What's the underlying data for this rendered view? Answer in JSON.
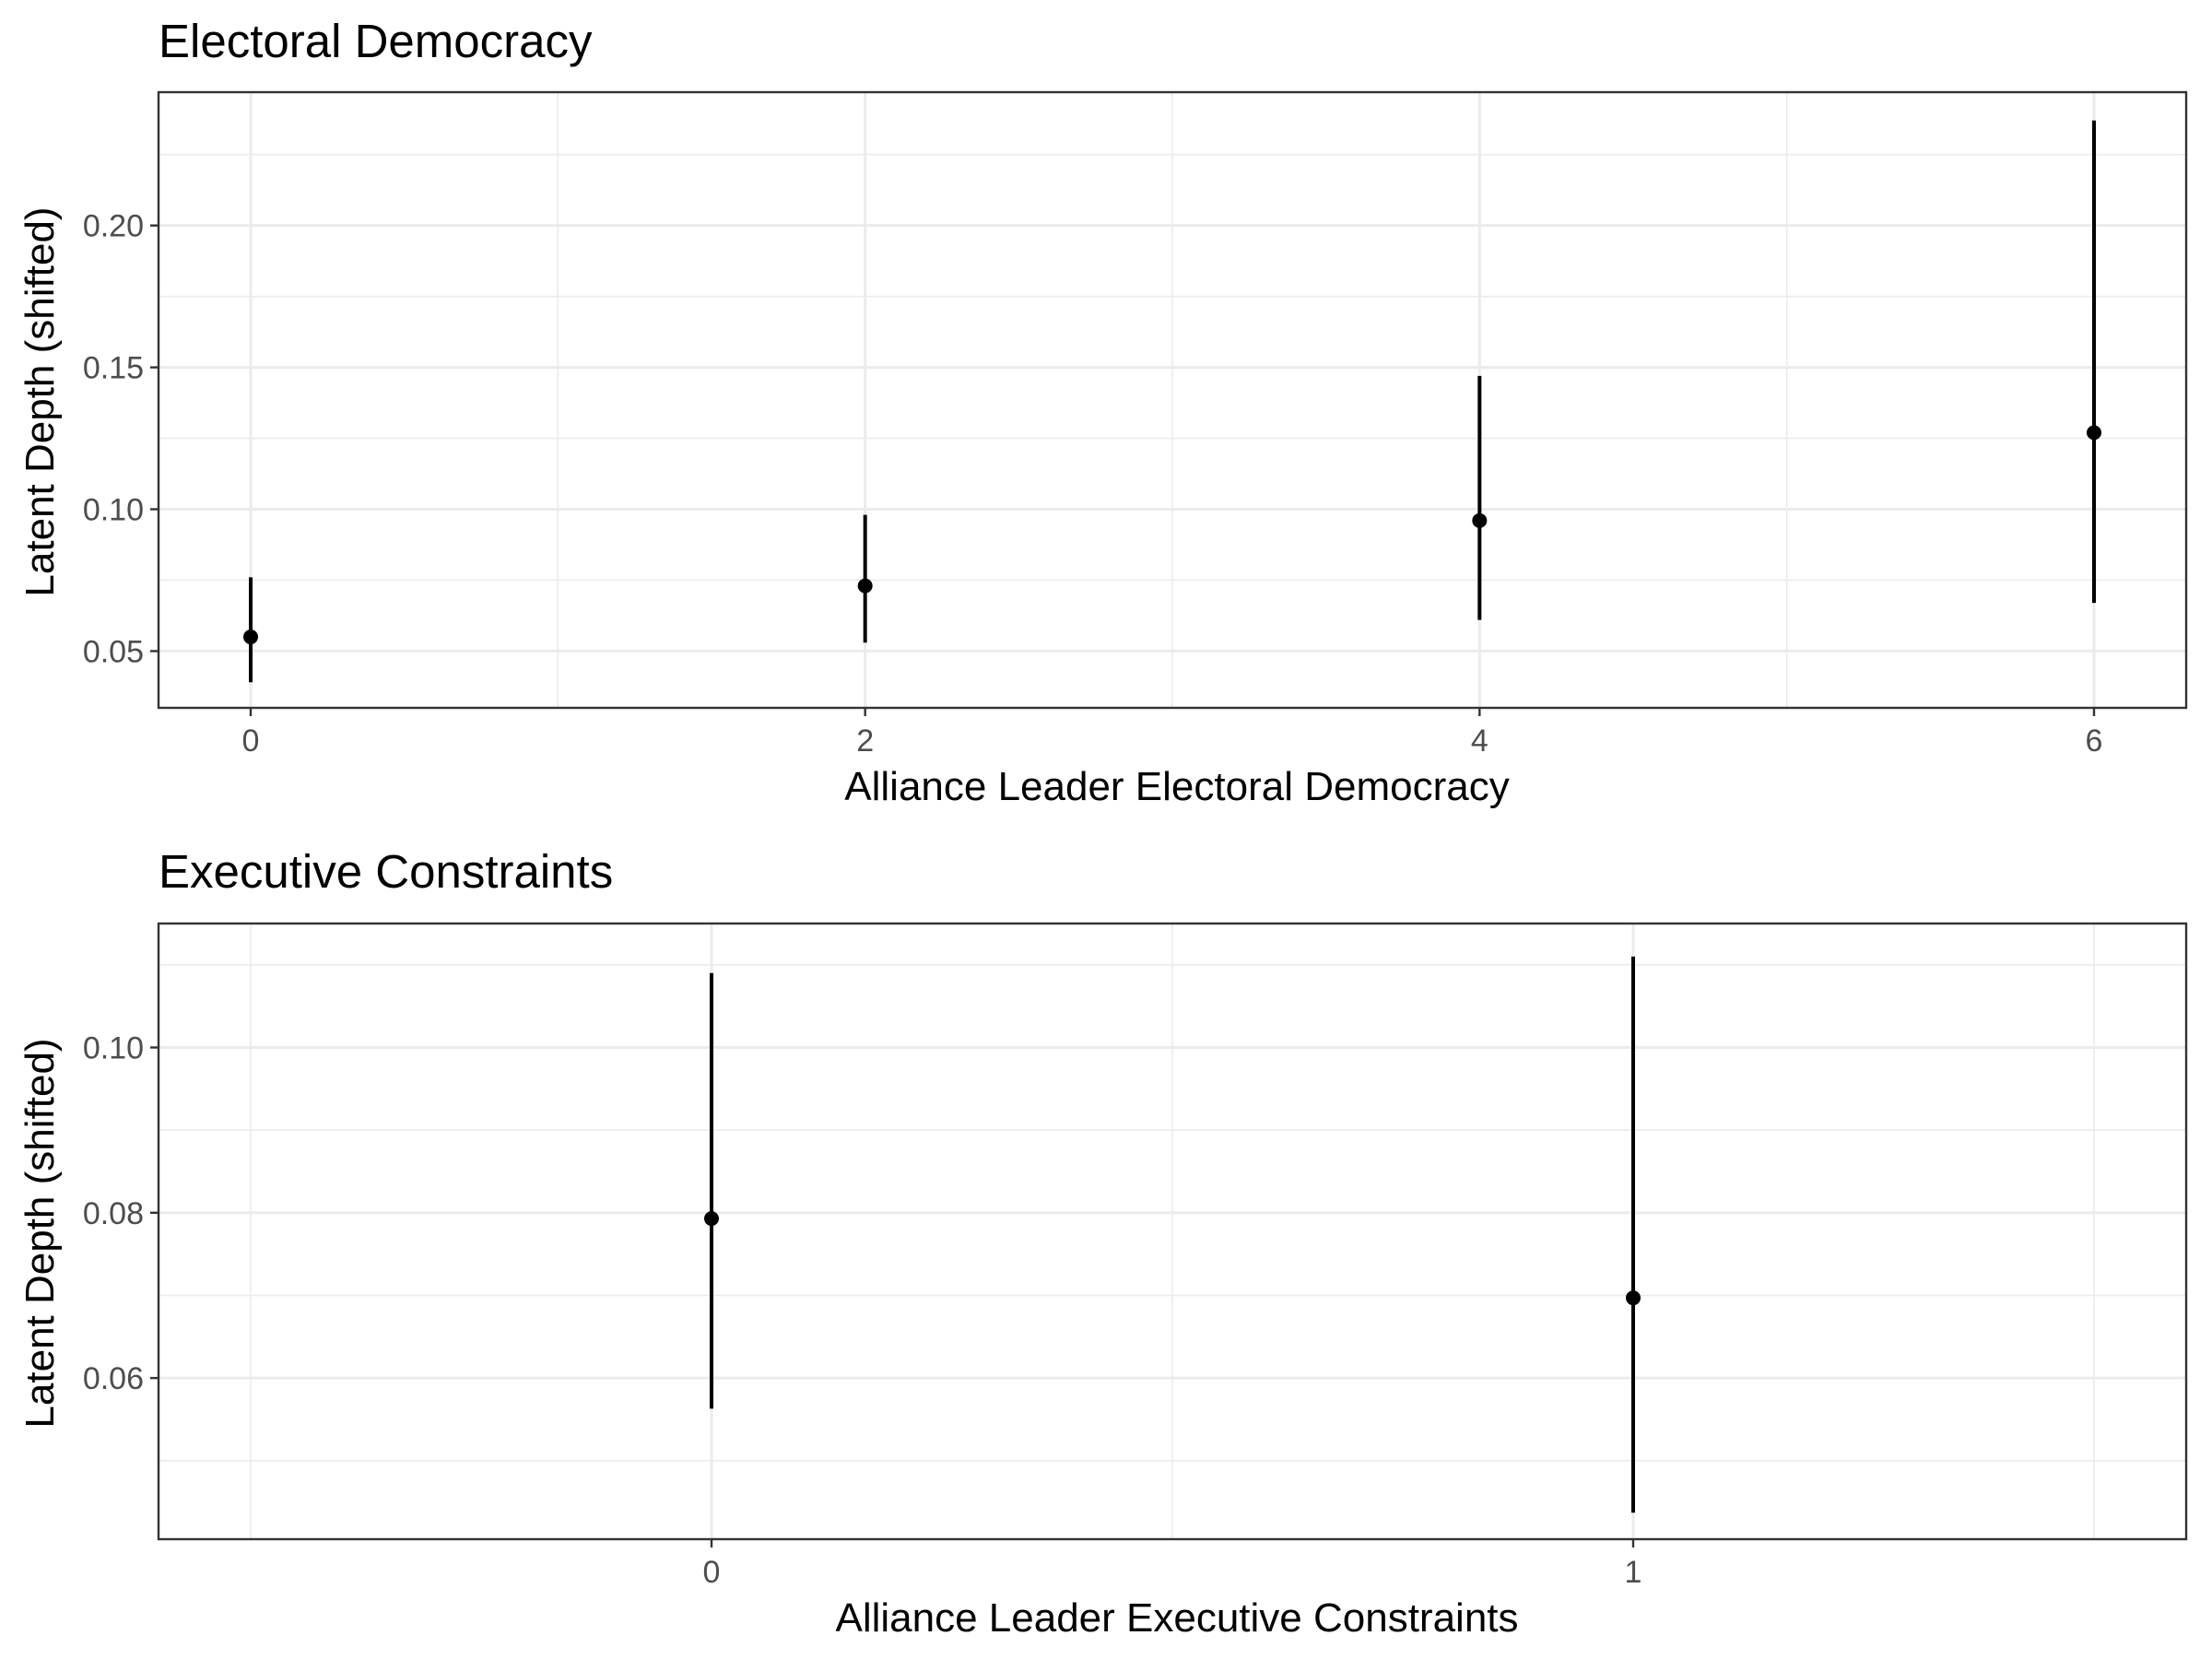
{
  "chart_data": [
    {
      "type": "errorbar",
      "title": "Electoral Democracy",
      "xlabel": "Alliance Leader Electoral Democracy",
      "ylabel": "Latent Depth (shifted)",
      "x_ticks": [
        "0",
        "2",
        "4",
        "6"
      ],
      "y_ticks": [
        "0.05",
        "0.10",
        "0.15",
        "0.20"
      ],
      "xlim": [
        -0.3,
        6.3
      ],
      "ylim": [
        0.03,
        0.247
      ],
      "grid": true,
      "points": [
        {
          "x": 0,
          "y": 0.055,
          "lower": 0.039,
          "upper": 0.076
        },
        {
          "x": 2,
          "y": 0.073,
          "lower": 0.053,
          "upper": 0.098
        },
        {
          "x": 4,
          "y": 0.096,
          "lower": 0.061,
          "upper": 0.147
        },
        {
          "x": 6,
          "y": 0.127,
          "lower": 0.067,
          "upper": 0.237
        }
      ]
    },
    {
      "type": "errorbar",
      "title": "Executive Constraints",
      "xlabel": "Alliance Leader Executive Constraints",
      "ylabel": "Latent Depth (shifted)",
      "x_ticks": [
        "0",
        "1"
      ],
      "y_ticks": [
        "0.06",
        "0.08",
        "0.10"
      ],
      "xlim": [
        -0.6,
        1.6
      ],
      "ylim": [
        0.0405,
        0.115
      ],
      "grid": true,
      "points": [
        {
          "x": 0,
          "y": 0.0793,
          "lower": 0.0563,
          "upper": 0.109
        },
        {
          "x": 1,
          "y": 0.0697,
          "lower": 0.0437,
          "upper": 0.111
        }
      ]
    }
  ]
}
